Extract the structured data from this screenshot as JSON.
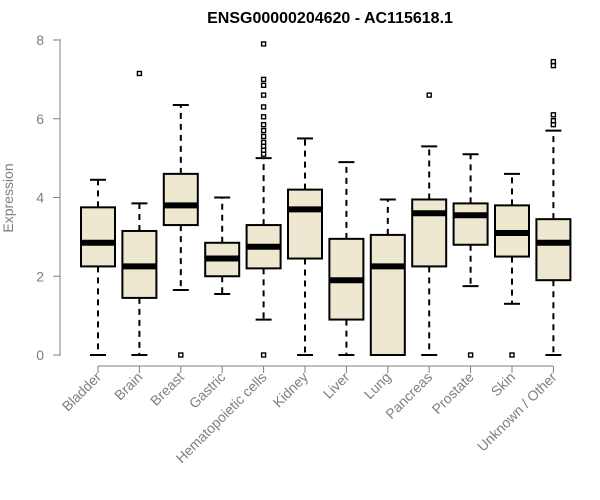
{
  "chart_data": {
    "type": "boxplot",
    "title": "ENSG00000204620 - AC115618.1",
    "xlabel": "",
    "ylabel": "Expression",
    "ylim": [
      0,
      8
    ],
    "yticks": [
      0,
      2,
      4,
      6,
      8
    ],
    "box_fill": "#efe8d0",
    "box_stroke": "#000000",
    "axis_color": "#7f7f7f",
    "categories": [
      "Bladder",
      "Brain",
      "Breast",
      "Gastric",
      "Hematopoietic cells",
      "Kidney",
      "Liver",
      "Lung",
      "Pancreas",
      "Prostate",
      "Skin",
      "Unknown / Other"
    ],
    "boxes": [
      {
        "name": "Bladder",
        "whisker_low": 0.0,
        "q1": 2.25,
        "median": 2.85,
        "q3": 3.75,
        "whisker_high": 4.45,
        "outliers": []
      },
      {
        "name": "Brain",
        "whisker_low": 0.0,
        "q1": 1.45,
        "median": 2.25,
        "q3": 3.15,
        "whisker_high": 3.85,
        "outliers": [
          7.15
        ]
      },
      {
        "name": "Breast",
        "whisker_low": 1.65,
        "q1": 3.3,
        "median": 3.8,
        "q3": 4.6,
        "whisker_high": 6.35,
        "outliers": [
          0.0
        ]
      },
      {
        "name": "Gastric",
        "whisker_low": 1.55,
        "q1": 2.0,
        "median": 2.45,
        "q3": 2.85,
        "whisker_high": 4.0,
        "outliers": []
      },
      {
        "name": "Hematopoietic cells",
        "whisker_low": 0.9,
        "q1": 2.2,
        "median": 2.75,
        "q3": 3.3,
        "whisker_high": 5.0,
        "outliers": [
          0.0,
          5.1,
          5.2,
          5.3,
          5.4,
          5.55,
          5.7,
          5.85,
          6.05,
          6.3,
          6.6,
          6.85,
          7.0,
          7.9
        ]
      },
      {
        "name": "Kidney",
        "whisker_low": 0.0,
        "q1": 2.45,
        "median": 3.7,
        "q3": 4.2,
        "whisker_high": 5.5,
        "outliers": []
      },
      {
        "name": "Liver",
        "whisker_low": 0.0,
        "q1": 0.9,
        "median": 1.9,
        "q3": 2.95,
        "whisker_high": 4.9,
        "outliers": []
      },
      {
        "name": "Lung",
        "whisker_low": 0.0,
        "q1": 0.0,
        "median": 2.25,
        "q3": 3.05,
        "whisker_high": 3.95,
        "outliers": []
      },
      {
        "name": "Pancreas",
        "whisker_low": 0.0,
        "q1": 2.25,
        "median": 3.6,
        "q3": 3.95,
        "whisker_high": 5.3,
        "outliers": [
          6.6
        ]
      },
      {
        "name": "Prostate",
        "whisker_low": 1.75,
        "q1": 2.8,
        "median": 3.55,
        "q3": 3.85,
        "whisker_high": 5.1,
        "outliers": [
          0.0
        ]
      },
      {
        "name": "Skin",
        "whisker_low": 1.3,
        "q1": 2.5,
        "median": 3.1,
        "q3": 3.8,
        "whisker_high": 4.6,
        "outliers": [
          0.0
        ]
      },
      {
        "name": "Unknown / Other",
        "whisker_low": 0.0,
        "q1": 1.9,
        "median": 2.85,
        "q3": 3.45,
        "whisker_high": 5.7,
        "outliers": [
          5.85,
          5.95,
          6.1,
          7.35,
          7.45
        ]
      }
    ]
  }
}
